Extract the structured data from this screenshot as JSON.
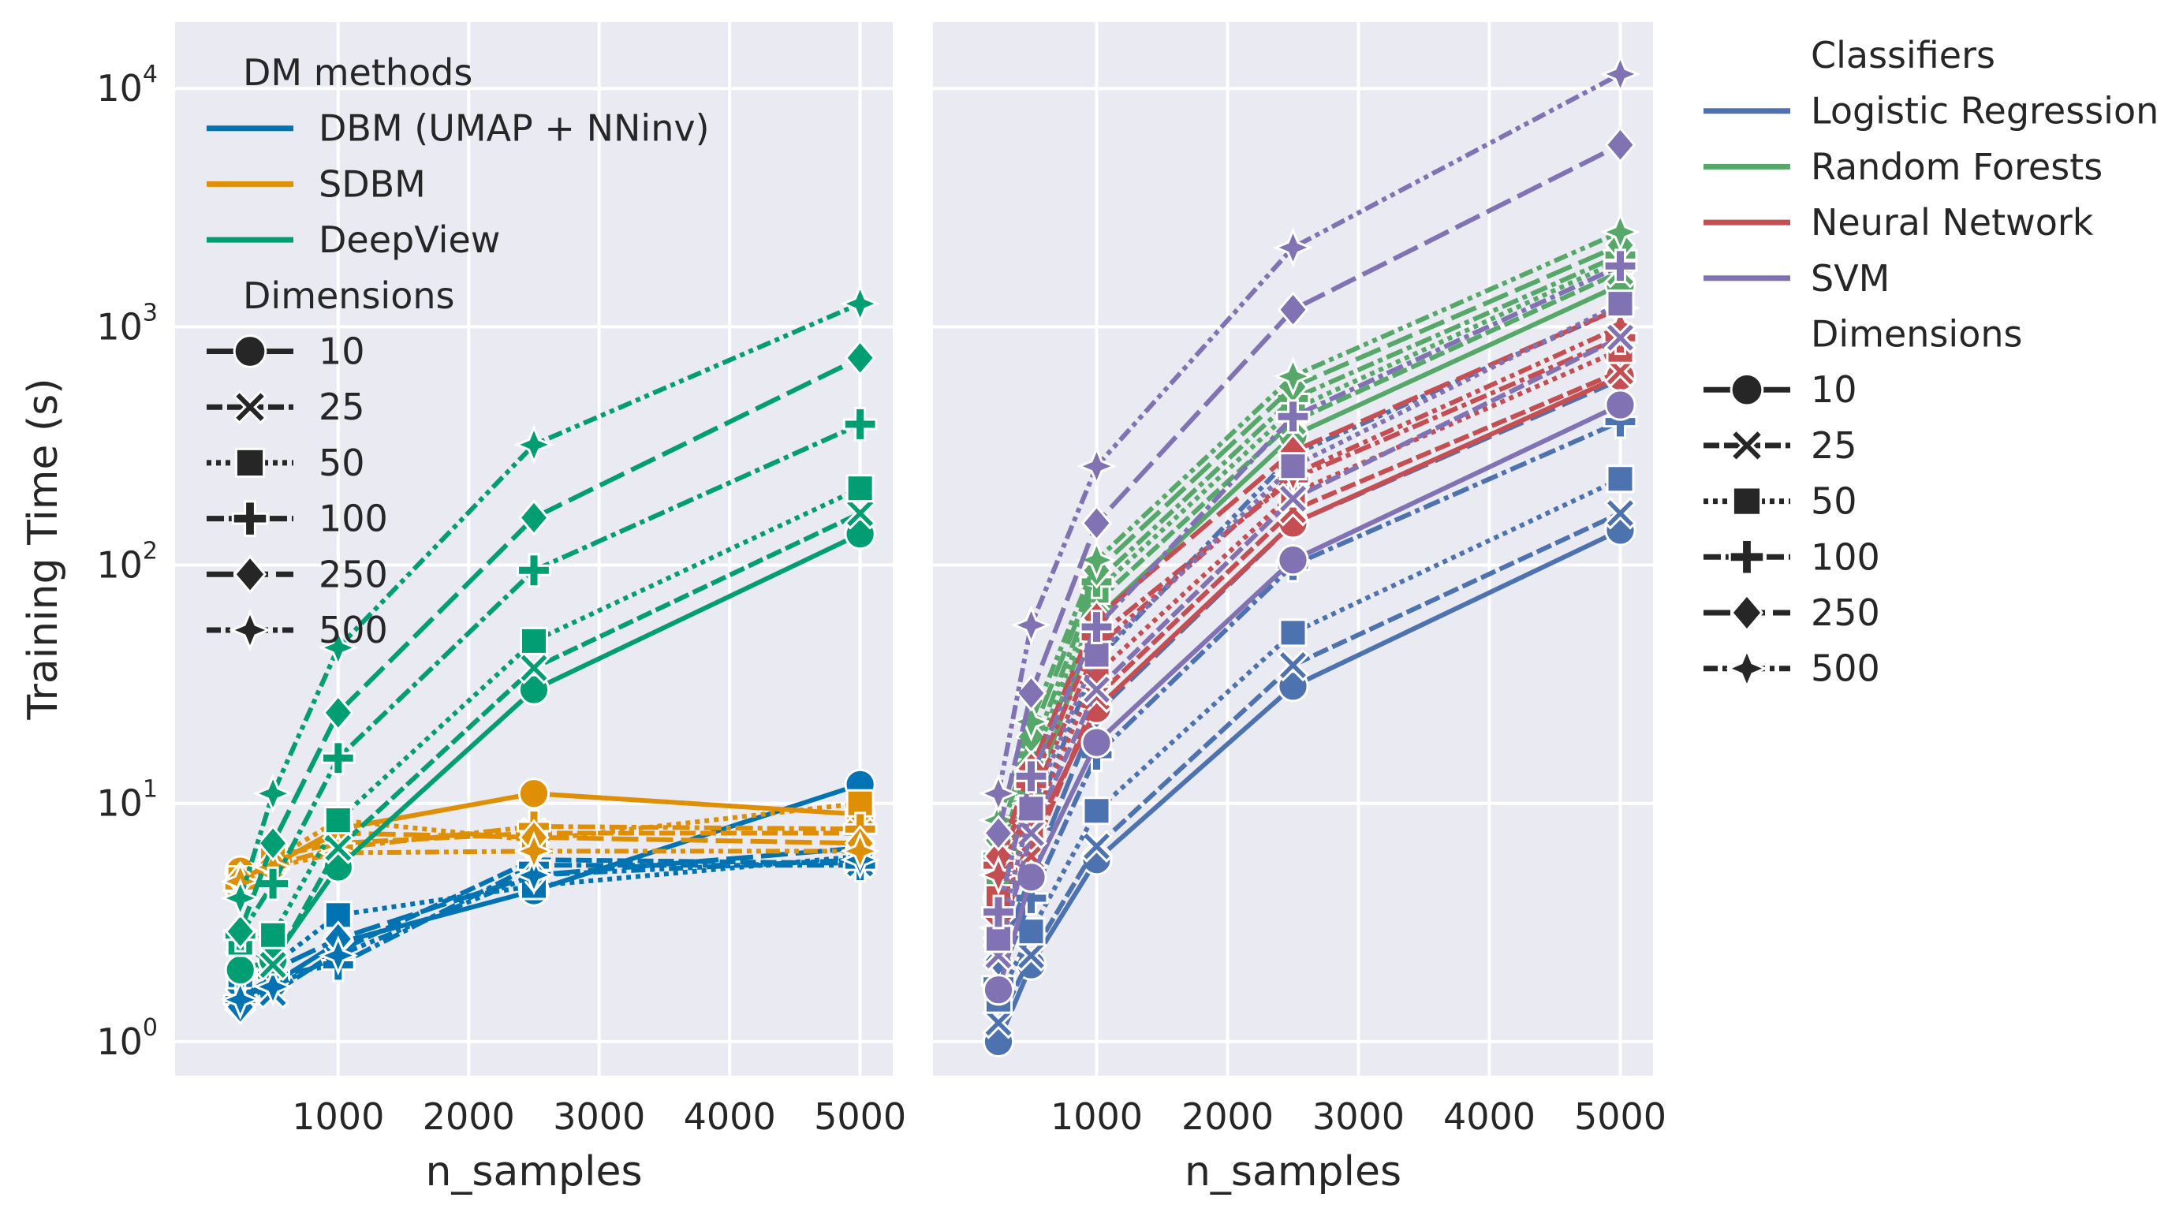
{
  "chart_data": [
    {
      "type": "line",
      "panel": "left",
      "xlabel": "n_samples",
      "ylabel": "Training Time (s)",
      "yscale": "log",
      "ylim": [
        0.72,
        19000
      ],
      "xlim": [
        -250,
        5250
      ],
      "grid": true,
      "x": [
        250,
        500,
        1000,
        2500,
        5000
      ],
      "xticks": [
        1000,
        2000,
        3000,
        4000,
        5000
      ],
      "xtick_labels": [
        "1000",
        "2000",
        "3000",
        "4000",
        "5000"
      ],
      "ytick_labels": [
        {
          "base": "10",
          "exp": "0"
        },
        {
          "base": "10",
          "exp": "1"
        },
        {
          "base": "10",
          "exp": "2"
        },
        {
          "base": "10",
          "exp": "3"
        },
        {
          "base": "10",
          "exp": "4"
        }
      ],
      "yticks": [
        1,
        10,
        100,
        1000,
        10000
      ],
      "hue_order": [
        "DBM (UMAP + NNinv)",
        "SDBM",
        "DeepView"
      ],
      "series": [
        {
          "method": "DBM (UMAP + NNinv)",
          "dim": "10",
          "values": [
            1.45,
            1.75,
            2.6,
            4.3,
            12.0
          ]
        },
        {
          "method": "DBM (UMAP + NNinv)",
          "dim": "25",
          "values": [
            1.5,
            1.6,
            2.4,
            5.8,
            5.6
          ]
        },
        {
          "method": "DBM (UMAP + NNinv)",
          "dim": "50",
          "values": [
            1.9,
            2.1,
            3.4,
            4.5,
            6.0
          ]
        },
        {
          "method": "DBM (UMAP + NNinv)",
          "dim": "100",
          "values": [
            1.5,
            1.9,
            2.1,
            5.5,
            5.5
          ]
        },
        {
          "method": "DBM (UMAP + NNinv)",
          "dim": "250",
          "values": [
            1.4,
            2.0,
            2.7,
            5.0,
            6.5
          ]
        },
        {
          "method": "DBM (UMAP + NNinv)",
          "dim": "500",
          "values": [
            1.5,
            1.7,
            2.3,
            5.0,
            5.8
          ]
        },
        {
          "method": "SDBM",
          "dim": "10",
          "values": [
            5.2,
            5.5,
            7.8,
            11.0,
            9.0
          ]
        },
        {
          "method": "SDBM",
          "dim": "25",
          "values": [
            4.6,
            6.0,
            6.8,
            7.5,
            7.5
          ]
        },
        {
          "method": "SDBM",
          "dim": "50",
          "values": [
            4.8,
            5.8,
            8.5,
            7.0,
            10.0
          ]
        },
        {
          "method": "SDBM",
          "dim": "100",
          "values": [
            4.5,
            5.5,
            6.5,
            8.0,
            7.8
          ]
        },
        {
          "method": "SDBM",
          "dim": "250",
          "values": [
            4.8,
            5.6,
            7.5,
            7.2,
            6.8
          ]
        },
        {
          "method": "SDBM",
          "dim": "500",
          "values": [
            4.7,
            5.4,
            6.2,
            6.3,
            6.3
          ]
        },
        {
          "method": "DeepView",
          "dim": "10",
          "values": [
            2.0,
            2.2,
            5.4,
            30.0,
            135.0
          ]
        },
        {
          "method": "DeepView",
          "dim": "25",
          "values": [
            2.6,
            2.1,
            6.5,
            37.0,
            165.0
          ]
        },
        {
          "method": "DeepView",
          "dim": "50",
          "values": [
            2.6,
            2.8,
            8.5,
            48.0,
            210.0
          ]
        },
        {
          "method": "DeepView",
          "dim": "100",
          "values": [
            2.8,
            4.6,
            15.5,
            95.0,
            390.0
          ]
        },
        {
          "method": "DeepView",
          "dim": "250",
          "values": [
            2.9,
            6.8,
            24.0,
            158.0,
            740.0
          ]
        },
        {
          "method": "DeepView",
          "dim": "500",
          "values": [
            4.0,
            11.0,
            45.0,
            320.0,
            1250.0
          ]
        }
      ]
    },
    {
      "type": "line",
      "panel": "right",
      "xlabel": "n_samples",
      "ylabel": "",
      "yscale": "log",
      "ylim": [
        0.72,
        19000
      ],
      "xlim": [
        -250,
        5250
      ],
      "grid": true,
      "x": [
        250,
        500,
        1000,
        2500,
        5000
      ],
      "xticks": [
        1000,
        2000,
        3000,
        4000,
        5000
      ],
      "xtick_labels": [
        "1000",
        "2000",
        "3000",
        "4000",
        "5000"
      ],
      "yticks": [
        1,
        10,
        100,
        1000,
        10000
      ],
      "hue_order": [
        "Logistic Regression",
        "Random Forests",
        "Neural Network",
        "SVM"
      ],
      "series": [
        {
          "method": "Logistic Regression",
          "dim": "10",
          "values": [
            1.0,
            2.1,
            5.8,
            31.0,
            140.0
          ]
        },
        {
          "method": "Logistic Regression",
          "dim": "25",
          "values": [
            1.2,
            2.3,
            6.6,
            38.0,
            165.0
          ]
        },
        {
          "method": "Logistic Regression",
          "dim": "50",
          "values": [
            1.5,
            2.9,
            9.3,
            52.0,
            230.0
          ]
        },
        {
          "method": "Logistic Regression",
          "dim": "100",
          "values": [
            1.8,
            4.0,
            16.0,
            100.0,
            400.0
          ]
        },
        {
          "method": "Logistic Regression",
          "dim": "250",
          "values": [
            2.2,
            5.0,
            24.0,
            150.0,
            600.0
          ]
        },
        {
          "method": "Logistic Regression",
          "dim": "500",
          "values": [
            3.0,
            8.0,
            40.0,
            290.0,
            1200.0
          ]
        },
        {
          "method": "Random Forests",
          "dim": "10",
          "values": [
            4.0,
            10.0,
            60.0,
            350.0,
            1500.0
          ]
        },
        {
          "method": "Random Forests",
          "dim": "25",
          "values": [
            4.5,
            12.0,
            70.0,
            400.0,
            1700.0
          ]
        },
        {
          "method": "Random Forests",
          "dim": "50",
          "values": [
            5.0,
            14.0,
            78.0,
            450.0,
            1900.0
          ]
        },
        {
          "method": "Random Forests",
          "dim": "100",
          "values": [
            6.0,
            16.0,
            85.0,
            500.0,
            2000.0
          ]
        },
        {
          "method": "Random Forests",
          "dim": "250",
          "values": [
            7.0,
            19.0,
            95.0,
            560.0,
            2200.0
          ]
        },
        {
          "method": "Random Forests",
          "dim": "500",
          "values": [
            8.5,
            22.0,
            105.0,
            620.0,
            2500.0
          ]
        },
        {
          "method": "Neural Network",
          "dim": "10",
          "values": [
            3.5,
            7.0,
            25.0,
            150.0,
            620.0
          ]
        },
        {
          "method": "Neural Network",
          "dim": "25",
          "values": [
            3.0,
            6.0,
            28.0,
            170.0,
            650.0
          ]
        },
        {
          "method": "Neural Network",
          "dim": "50",
          "values": [
            4.0,
            8.0,
            35.0,
            200.0,
            800.0
          ]
        },
        {
          "method": "Neural Network",
          "dim": "100",
          "values": [
            5.5,
            12.0,
            50.0,
            230.0,
            900.0
          ]
        },
        {
          "method": "Neural Network",
          "dim": "250",
          "values": [
            6.0,
            14.0,
            60.0,
            300.0,
            1200.0
          ]
        },
        {
          "method": "Neural Network",
          "dim": "500",
          "values": [
            5.0,
            10.0,
            45.0,
            240.0,
            1000.0
          ]
        },
        {
          "method": "SVM",
          "dim": "10",
          "values": [
            1.65,
            4.9,
            18.0,
            105.0,
            470.0
          ]
        },
        {
          "method": "SVM",
          "dim": "25",
          "values": [
            2.3,
            7.5,
            30.0,
            190.0,
            900.0
          ]
        },
        {
          "method": "SVM",
          "dim": "50",
          "values": [
            2.7,
            9.5,
            42.0,
            260.0,
            1250.0
          ]
        },
        {
          "method": "SVM",
          "dim": "100",
          "values": [
            3.5,
            13.0,
            55.0,
            420.0,
            1800.0
          ]
        },
        {
          "method": "SVM",
          "dim": "250",
          "values": [
            7.5,
            29.0,
            150.0,
            1180.0,
            5800.0
          ]
        },
        {
          "method": "SVM",
          "dim": "500",
          "values": [
            11.0,
            56.0,
            260.0,
            2150.0,
            11500.0
          ]
        }
      ]
    }
  ],
  "legend_left": {
    "title_methods": "DM methods",
    "methods": [
      "DBM (UMAP + NNinv)",
      "SDBM",
      "DeepView"
    ],
    "title_dims": "Dimensions",
    "dims": [
      "10",
      "25",
      "50",
      "100",
      "250",
      "500"
    ]
  },
  "legend_right": {
    "title_classifiers": "Classifiers",
    "classifiers": [
      "Logistic Regression",
      "Random Forests",
      "Neural Network",
      "SVM"
    ],
    "title_dims": "Dimensions",
    "dims": [
      "10",
      "25",
      "50",
      "100",
      "250",
      "500"
    ]
  },
  "colors": {
    "DBM (UMAP + NNinv)": "#0173b2",
    "SDBM": "#de8f05",
    "DeepView": "#029e73",
    "Logistic Regression": "#4c72b0",
    "Random Forests": "#55a868",
    "Neural Network": "#c44e52",
    "SVM": "#8172b3",
    "panel_bg": "#eaeaf2",
    "grid": "#ffffff",
    "text": "#262626"
  },
  "dash_styles": {
    "10": "",
    "25": "20,6",
    "50": "6,6",
    "100": "22,6,6,6",
    "250": "34,10",
    "500": "18,6,6,6,6,6"
  },
  "marker_shapes": {
    "10": "circle",
    "25": "x",
    "50": "square",
    "100": "plus",
    "250": "diamond",
    "500": "star"
  }
}
